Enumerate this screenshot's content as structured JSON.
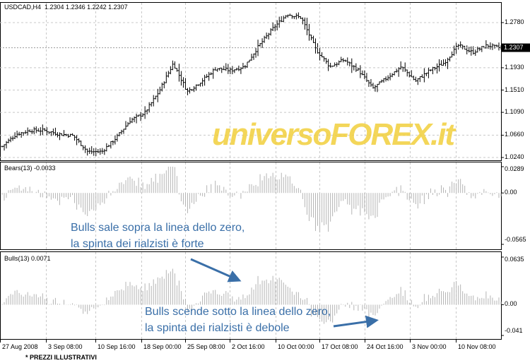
{
  "header": {
    "symbol": "USDCAD,H4",
    "ohlc": "1.2304 1.2346 1.2242 1.2307"
  },
  "watermark": "universoFOREX.it",
  "footnote": "* PREZZI ILLUSTRATIVI",
  "annotations": {
    "bulls_above": [
      "Bulls sale sopra la linea dello zero,",
      "la spinta dei rialzisti è forte"
    ],
    "bulls_below": [
      "Bulls scende sotto la linea dello zero,",
      "la spinta dei rialzisti è debole"
    ]
  },
  "colors": {
    "annotation": "#3a6fa8",
    "watermark": "#f2cf3d",
    "indicator": "#b4b4b4",
    "price_bars": "#000000"
  },
  "chart_data": [
    {
      "type": "ohlc",
      "title": "USDCAD,H4",
      "ylim": [
        1.024,
        1.296
      ],
      "y_ticks": [
        "1.2780",
        "1.1930",
        "1.1510",
        "1.1090",
        "1.0660",
        "1.0240"
      ],
      "current_price": "1.2307",
      "x_ticks": [
        "27 Aug 2008",
        "3 Sep 08:00",
        "10 Sep 16:00",
        "18 Sep 00:00",
        "25 Sep 08:00",
        "2 Oct 16:00",
        "10 Oct 00:00",
        "17 Oct 08:00",
        "24 Oct 16:00",
        "3 Nov 00:00",
        "10 Nov 08:00"
      ],
      "approx_close_path": [
        1.045,
        1.068,
        1.075,
        1.075,
        1.068,
        1.065,
        1.035,
        1.035,
        1.061,
        1.094,
        1.108,
        1.148,
        1.201,
        1.148,
        1.168,
        1.192,
        1.188,
        1.195,
        1.234,
        1.267,
        1.294,
        1.287,
        1.228,
        1.195,
        1.208,
        1.188,
        1.154,
        1.174,
        1.195,
        1.168,
        1.188,
        1.202,
        1.235,
        1.222,
        1.235,
        1.23
      ]
    },
    {
      "type": "bar",
      "title": "Bears(13) -0.0033",
      "ylim": [
        -0.0565,
        0.0289
      ],
      "y_ticks": [
        "0.0289",
        "0.00",
        "-0.0565"
      ]
    },
    {
      "type": "bar",
      "title": "Bulls(13) 0.0071",
      "ylim": [
        -0.041,
        0.0635
      ],
      "y_ticks": [
        "0.0635",
        "0.00",
        "-0.041"
      ]
    }
  ]
}
